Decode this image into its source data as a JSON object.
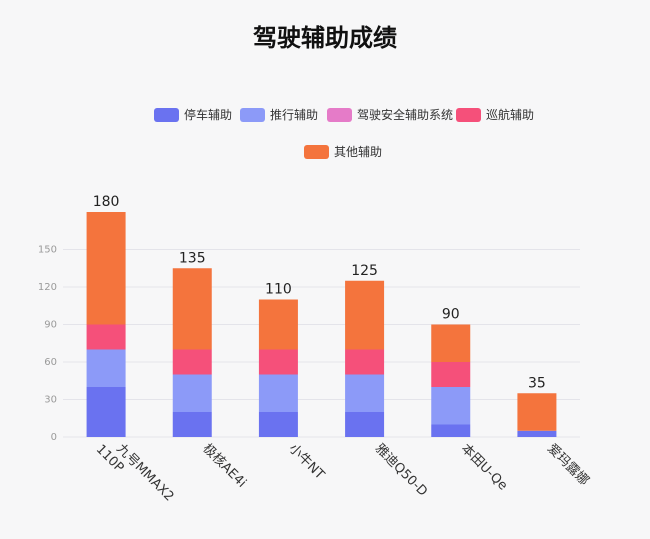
{
  "chart_data": {
    "type": "bar",
    "stacked": true,
    "title": "驾驶辅助成绩",
    "categories": [
      "九号MMAX2 110P",
      "极核AE4i",
      "小牛NT",
      "雅迪Q50-D",
      "本田U-Qe",
      "爱玛露娜"
    ],
    "series": [
      {
        "name": "停车辅助",
        "color": "#6a72f0",
        "values": [
          40,
          20,
          20,
          20,
          10,
          5
        ]
      },
      {
        "name": "推行辅助",
        "color": "#8c9af8",
        "values": [
          30,
          30,
          30,
          30,
          30,
          0
        ]
      },
      {
        "name": "驾驶安全辅助系统",
        "color": "#e57bc8",
        "values": [
          0,
          0,
          0,
          0,
          0,
          0
        ]
      },
      {
        "name": "巡航辅助",
        "color": "#f5507a",
        "values": [
          20,
          20,
          20,
          20,
          20,
          0
        ]
      },
      {
        "name": "其他辅助",
        "color": "#f4743d",
        "values": [
          90,
          65,
          40,
          55,
          30,
          30
        ]
      }
    ],
    "totals": [
      180,
      135,
      110,
      125,
      90,
      35
    ],
    "ylim": [
      0,
      180
    ],
    "yticks": [
      0,
      30,
      60,
      90,
      120,
      150
    ],
    "grid": true,
    "legend_position": "top"
  }
}
